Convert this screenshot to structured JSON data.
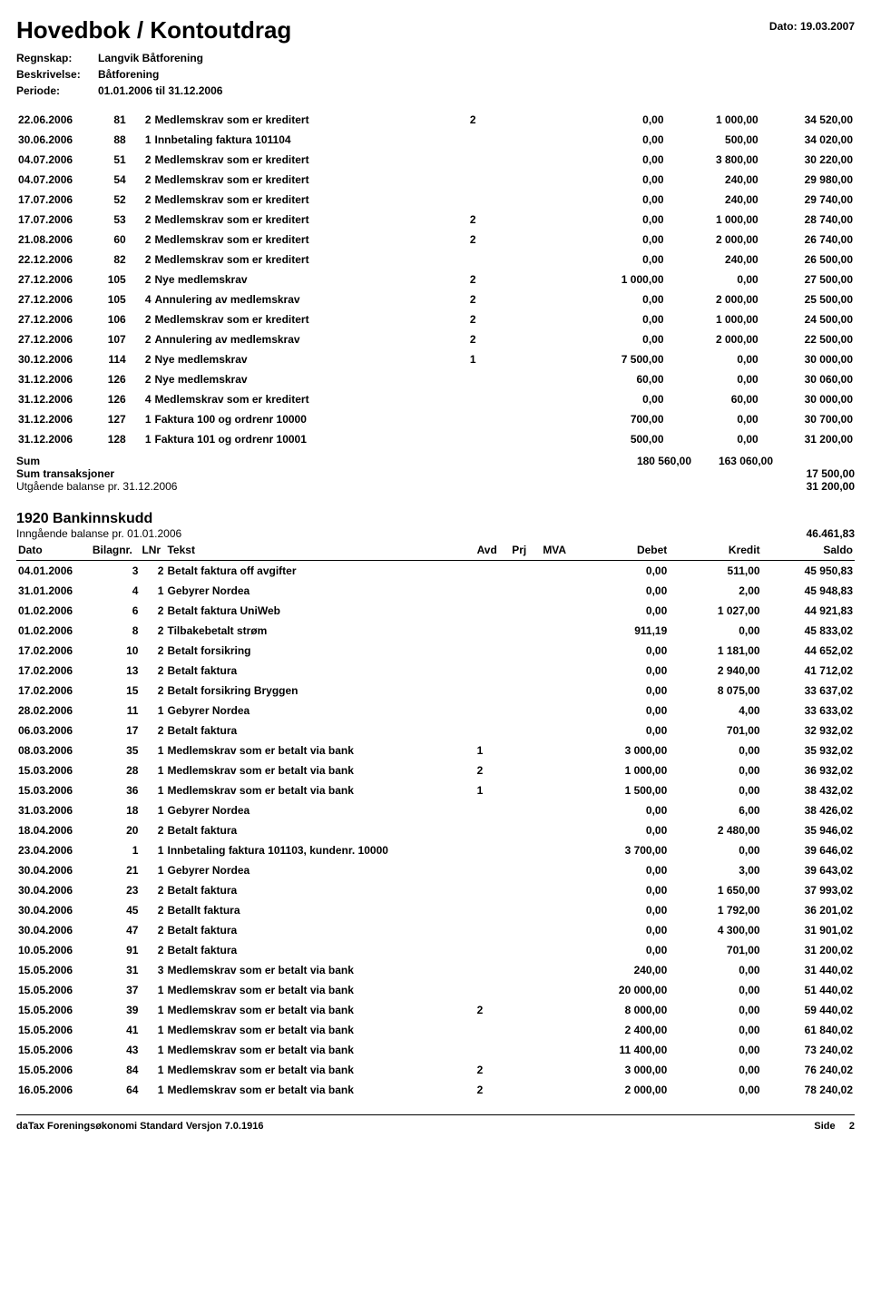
{
  "header": {
    "title": "Hovedbok / Kontoutdrag",
    "date_label": "Dato:",
    "date_value": "19.03.2007",
    "meta": [
      {
        "label": "Regnskap:",
        "value": "Langvik Båtforening"
      },
      {
        "label": "Beskrivelse:",
        "value": "Båtforening"
      },
      {
        "label": "Periode:",
        "value": "01.01.2006  til  31.12.2006"
      }
    ]
  },
  "table1": {
    "rows": [
      [
        "22.06.2006",
        "81",
        "2",
        "Medlemskrav som er kreditert",
        "2",
        "",
        "",
        "0,00",
        "1 000,00",
        "34 520,00"
      ],
      [
        "30.06.2006",
        "88",
        "1",
        "Innbetaling faktura 101104",
        "",
        "",
        "",
        "0,00",
        "500,00",
        "34 020,00"
      ],
      [
        "04.07.2006",
        "51",
        "2",
        "Medlemskrav som er kreditert",
        "",
        "",
        "",
        "0,00",
        "3 800,00",
        "30 220,00"
      ],
      [
        "04.07.2006",
        "54",
        "2",
        "Medlemskrav som er kreditert",
        "",
        "",
        "",
        "0,00",
        "240,00",
        "29 980,00"
      ],
      [
        "17.07.2006",
        "52",
        "2",
        "Medlemskrav som er kreditert",
        "",
        "",
        "",
        "0,00",
        "240,00",
        "29 740,00"
      ],
      [
        "17.07.2006",
        "53",
        "2",
        "Medlemskrav som er kreditert",
        "2",
        "",
        "",
        "0,00",
        "1 000,00",
        "28 740,00"
      ],
      [
        "21.08.2006",
        "60",
        "2",
        "Medlemskrav som er kreditert",
        "2",
        "",
        "",
        "0,00",
        "2 000,00",
        "26 740,00"
      ],
      [
        "22.12.2006",
        "82",
        "2",
        "Medlemskrav som er kreditert",
        "",
        "",
        "",
        "0,00",
        "240,00",
        "26 500,00"
      ],
      [
        "27.12.2006",
        "105",
        "2",
        "Nye medlemskrav",
        "2",
        "",
        "",
        "1 000,00",
        "0,00",
        "27 500,00"
      ],
      [
        "27.12.2006",
        "105",
        "4",
        "Annulering av medlemskrav",
        "2",
        "",
        "",
        "0,00",
        "2 000,00",
        "25 500,00"
      ],
      [
        "27.12.2006",
        "106",
        "2",
        "Medlemskrav som er kreditert",
        "2",
        "",
        "",
        "0,00",
        "1 000,00",
        "24 500,00"
      ],
      [
        "27.12.2006",
        "107",
        "2",
        "Annulering av medlemskrav",
        "2",
        "",
        "",
        "0,00",
        "2 000,00",
        "22 500,00"
      ],
      [
        "30.12.2006",
        "114",
        "2",
        "Nye medlemskrav",
        "1",
        "",
        "",
        "7 500,00",
        "0,00",
        "30 000,00"
      ],
      [
        "31.12.2006",
        "126",
        "2",
        "Nye medlemskrav",
        "",
        "",
        "",
        "60,00",
        "0,00",
        "30 060,00"
      ],
      [
        "31.12.2006",
        "126",
        "4",
        "Medlemskrav som er kreditert",
        "",
        "",
        "",
        "0,00",
        "60,00",
        "30 000,00"
      ],
      [
        "31.12.2006",
        "127",
        "1",
        "Faktura 100 og ordrenr 10000",
        "",
        "",
        "",
        "700,00",
        "0,00",
        "30 700,00"
      ],
      [
        "31.12.2006",
        "128",
        "1",
        "Faktura 101 og ordrenr 10001",
        "",
        "",
        "",
        "500,00",
        "0,00",
        "31 200,00"
      ]
    ]
  },
  "sums": {
    "sum_label": "Sum",
    "sum_debet": "180 560,00",
    "sum_kredit": "163 060,00",
    "trans_label": "Sum transaksjoner",
    "trans_value": "17 500,00",
    "out_label": "Utgående balanse pr. 31.12.2006",
    "out_value": "31 200,00"
  },
  "section2": {
    "title": "1920  Bankinnskudd",
    "incoming_label": "Inngående balanse pr. 01.01.2006",
    "incoming_value": "46.461,83",
    "headers": [
      "Dato",
      "Bilagnr.",
      "LNr",
      "Tekst",
      "Avd",
      "Prj",
      "MVA",
      "Debet",
      "Kredit",
      "Saldo"
    ],
    "rows": [
      [
        "04.01.2006",
        "3",
        "2",
        "Betalt faktura off avgifter",
        "",
        "",
        "",
        "0,00",
        "511,00",
        "45 950,83"
      ],
      [
        "31.01.2006",
        "4",
        "1",
        "Gebyrer Nordea",
        "",
        "",
        "",
        "0,00",
        "2,00",
        "45 948,83"
      ],
      [
        "01.02.2006",
        "6",
        "2",
        "Betalt faktura UniWeb",
        "",
        "",
        "",
        "0,00",
        "1 027,00",
        "44 921,83"
      ],
      [
        "01.02.2006",
        "8",
        "2",
        "Tilbakebetalt strøm",
        "",
        "",
        "",
        "911,19",
        "0,00",
        "45 833,02"
      ],
      [
        "17.02.2006",
        "10",
        "2",
        "Betalt forsikring",
        "",
        "",
        "",
        "0,00",
        "1 181,00",
        "44 652,02"
      ],
      [
        "17.02.2006",
        "13",
        "2",
        "Betalt faktura",
        "",
        "",
        "",
        "0,00",
        "2 940,00",
        "41 712,02"
      ],
      [
        "17.02.2006",
        "15",
        "2",
        "Betalt forsikring Bryggen",
        "",
        "",
        "",
        "0,00",
        "8 075,00",
        "33 637,02"
      ],
      [
        "28.02.2006",
        "11",
        "1",
        "Gebyrer Nordea",
        "",
        "",
        "",
        "0,00",
        "4,00",
        "33 633,02"
      ],
      [
        "06.03.2006",
        "17",
        "2",
        "Betalt faktura",
        "",
        "",
        "",
        "0,00",
        "701,00",
        "32 932,02"
      ],
      [
        "08.03.2006",
        "35",
        "1",
        "Medlemskrav som er betalt via bank",
        "1",
        "",
        "",
        "3 000,00",
        "0,00",
        "35 932,02"
      ],
      [
        "15.03.2006",
        "28",
        "1",
        "Medlemskrav som er betalt via bank",
        "2",
        "",
        "",
        "1 000,00",
        "0,00",
        "36 932,02"
      ],
      [
        "15.03.2006",
        "36",
        "1",
        "Medlemskrav som er betalt via bank",
        "1",
        "",
        "",
        "1 500,00",
        "0,00",
        "38 432,02"
      ],
      [
        "31.03.2006",
        "18",
        "1",
        "Gebyrer Nordea",
        "",
        "",
        "",
        "0,00",
        "6,00",
        "38 426,02"
      ],
      [
        "18.04.2006",
        "20",
        "2",
        "Betalt faktura",
        "",
        "",
        "",
        "0,00",
        "2 480,00",
        "35 946,02"
      ],
      [
        "23.04.2006",
        "1",
        "1",
        "Innbetaling faktura 101103, kundenr. 10000",
        "",
        "",
        "",
        "3 700,00",
        "0,00",
        "39 646,02"
      ],
      [
        "30.04.2006",
        "21",
        "1",
        "Gebyrer Nordea",
        "",
        "",
        "",
        "0,00",
        "3,00",
        "39 643,02"
      ],
      [
        "30.04.2006",
        "23",
        "2",
        "Betalt faktura",
        "",
        "",
        "",
        "0,00",
        "1 650,00",
        "37 993,02"
      ],
      [
        "30.04.2006",
        "45",
        "2",
        "Betallt faktura",
        "",
        "",
        "",
        "0,00",
        "1 792,00",
        "36 201,02"
      ],
      [
        "30.04.2006",
        "47",
        "2",
        "Betalt faktura",
        "",
        "",
        "",
        "0,00",
        "4 300,00",
        "31 901,02"
      ],
      [
        "10.05.2006",
        "91",
        "2",
        "Betalt faktura",
        "",
        "",
        "",
        "0,00",
        "701,00",
        "31 200,02"
      ],
      [
        "15.05.2006",
        "31",
        "3",
        "Medlemskrav som er betalt via bank",
        "",
        "",
        "",
        "240,00",
        "0,00",
        "31 440,02"
      ],
      [
        "15.05.2006",
        "37",
        "1",
        "Medlemskrav som er betalt via bank",
        "",
        "",
        "",
        "20 000,00",
        "0,00",
        "51 440,02"
      ],
      [
        "15.05.2006",
        "39",
        "1",
        "Medlemskrav som er betalt via bank",
        "2",
        "",
        "",
        "8 000,00",
        "0,00",
        "59 440,02"
      ],
      [
        "15.05.2006",
        "41",
        "1",
        "Medlemskrav som er betalt via bank",
        "",
        "",
        "",
        "2 400,00",
        "0,00",
        "61 840,02"
      ],
      [
        "15.05.2006",
        "43",
        "1",
        "Medlemskrav som er betalt via bank",
        "",
        "",
        "",
        "11 400,00",
        "0,00",
        "73 240,02"
      ],
      [
        "15.05.2006",
        "84",
        "1",
        "Medlemskrav som er betalt via bank",
        "2",
        "",
        "",
        "3 000,00",
        "0,00",
        "76 240,02"
      ],
      [
        "16.05.2006",
        "64",
        "1",
        "Medlemskrav som er betalt via bank",
        "2",
        "",
        "",
        "2 000,00",
        "0,00",
        "78 240,02"
      ]
    ]
  },
  "footer": {
    "left": "daTax Foreningsøkonomi Standard  Versjon 7.0.1916",
    "right_label": "Side",
    "right_value": "2"
  }
}
